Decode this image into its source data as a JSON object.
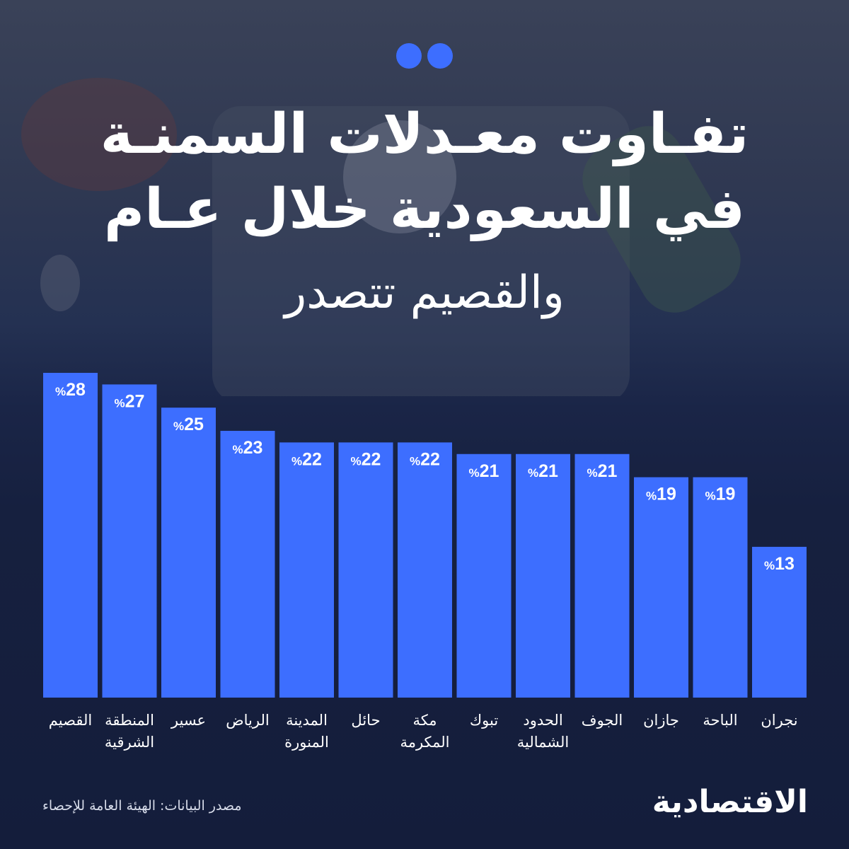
{
  "title_line1": "تفـاوت معـدلات السمنـة",
  "title_line2": "في السعودية خلال عـام",
  "subtitle": "والقصيم تتصدر",
  "source": "مصدر البيانات: الهيئة العامة للإحصاء",
  "logo_text": "الاقتصادية",
  "colors": {
    "bar": "#3d6eff",
    "background": "#16203f",
    "dots": "#3d6eff"
  },
  "chart_data": {
    "type": "bar",
    "value_suffix": "%",
    "categories": [
      [
        "القصيم"
      ],
      [
        "المنطقة",
        "الشرقية"
      ],
      [
        "عسير"
      ],
      [
        "الرياض"
      ],
      [
        "المدينة",
        "المنورة"
      ],
      [
        "حائل"
      ],
      [
        "مكة",
        "المكرمة"
      ],
      [
        "تبوك"
      ],
      [
        "الحدود",
        "الشمالية"
      ],
      [
        "الجوف"
      ],
      [
        "جازان"
      ],
      [
        "الباحة"
      ],
      [
        "نجران"
      ]
    ],
    "values": [
      28,
      27,
      25,
      23,
      22,
      22,
      22,
      21,
      21,
      21,
      19,
      19,
      13
    ],
    "ylim": [
      0,
      28
    ]
  }
}
